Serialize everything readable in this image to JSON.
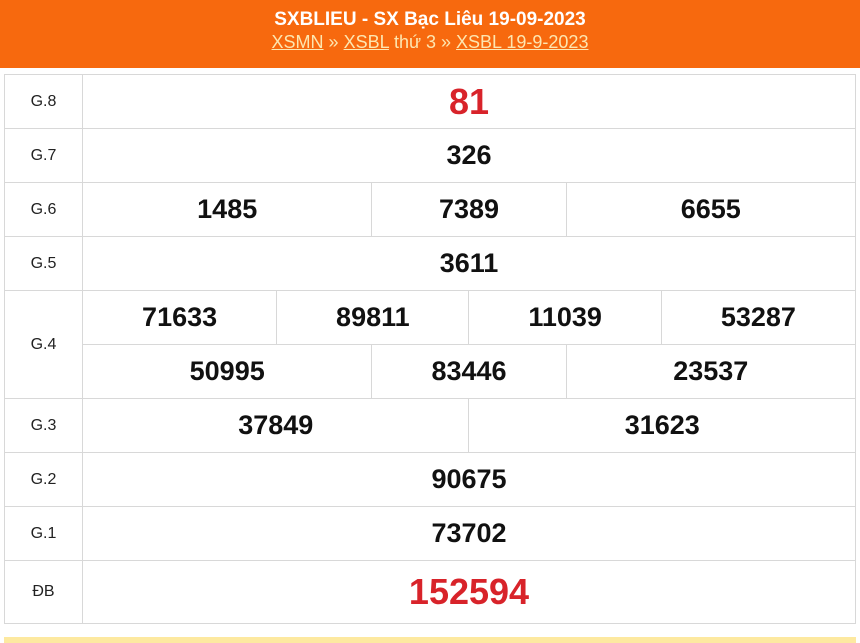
{
  "header": {
    "title": "SXBLIEU - SX Bạc Liêu 19-09-2023",
    "breadcrumb": {
      "link1": "XSMN",
      "sep1": " » ",
      "link2": "XSBL",
      "text": " thứ 3 » ",
      "link3": "XSBL 19-9-2023"
    }
  },
  "colors": {
    "header_bg": "#f7690e",
    "highlight": "#d8232a"
  },
  "prizes": [
    {
      "label": "G.8",
      "numbers": [
        "81"
      ]
    },
    {
      "label": "G.7",
      "numbers": [
        "326"
      ]
    },
    {
      "label": "G.6",
      "numbers": [
        "1485",
        "7389",
        "6655"
      ]
    },
    {
      "label": "G.5",
      "numbers": [
        "3611"
      ]
    },
    {
      "label": "G.4",
      "numbers": [
        "71633",
        "89811",
        "11039",
        "53287",
        "50995",
        "83446",
        "23537"
      ]
    },
    {
      "label": "G.3",
      "numbers": [
        "37849",
        "31623"
      ]
    },
    {
      "label": "G.2",
      "numbers": [
        "90675"
      ]
    },
    {
      "label": "G.1",
      "numbers": [
        "73702"
      ]
    },
    {
      "label": "ĐB",
      "numbers": [
        "152594"
      ]
    }
  ]
}
